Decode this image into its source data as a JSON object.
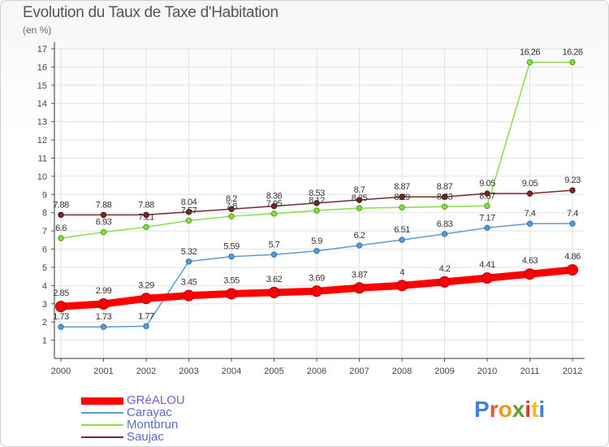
{
  "title": "Evolution du Taux de Taxe d'Habitation",
  "unit_label": "(en %)",
  "brand": {
    "text": "Proxiti",
    "letter_colors": [
      "#3f7fd9",
      "#e8552a",
      "#e89a1a",
      "#5a9f2b",
      "#d63a2a",
      "#e8c21a",
      "#3f7fd9"
    ]
  },
  "chart_data": {
    "type": "line",
    "title": "Evolution du Taux de Taxe d'Habitation",
    "ylabel": "(en %)",
    "xlabel": "",
    "ylim": [
      0,
      17
    ],
    "yticks": [
      1,
      2,
      3,
      4,
      5,
      6,
      7,
      8,
      9,
      10,
      11,
      12,
      13,
      14,
      15,
      16,
      17
    ],
    "x": [
      "2000",
      "2001",
      "2002",
      "2003",
      "2004",
      "2005",
      "2006",
      "2007",
      "2008",
      "2009",
      "2010",
      "2011",
      "2012"
    ],
    "grid": true,
    "legend": "bottom-left",
    "series": [
      {
        "name": "GRéALOU",
        "color": "#ff0000",
        "values": [
          2.85,
          2.99,
          3.29,
          3.45,
          3.55,
          3.62,
          3.69,
          3.87,
          4,
          4.2,
          4.41,
          4.63,
          4.86
        ],
        "labels": [
          "2.85",
          "2.99",
          "3.29",
          "3.45",
          "3.55",
          "3.62",
          "3.69",
          "3.87",
          "4",
          "4.2",
          "4.41",
          "4.63",
          "4.86"
        ]
      },
      {
        "name": "Carayac",
        "color": "#5b9bd5",
        "values": [
          1.73,
          1.73,
          1.77,
          5.32,
          5.59,
          5.7,
          5.9,
          6.2,
          6.51,
          6.83,
          7.17,
          7.4,
          7.4
        ],
        "labels": [
          "1.73",
          "1.73",
          "1.77",
          "5.32",
          "5.59",
          "5.7",
          "5.9",
          "6.2",
          "6.51",
          "6.83",
          "7.17",
          "7.4",
          "7.4"
        ]
      },
      {
        "name": "Montbrun",
        "color": "#88dd44",
        "values": [
          6.6,
          6.93,
          7.21,
          7.57,
          7.8,
          7.95,
          8.12,
          8.25,
          8.29,
          8.33,
          8.37,
          16.26,
          16.26
        ],
        "labels": [
          "6.6",
          "6.93",
          "7.21",
          "7.57",
          "7.8",
          "7.95",
          "8.12",
          "8.25",
          "8.29",
          "8.33",
          "8.37",
          "16.26",
          "16.26"
        ]
      },
      {
        "name": "Saujac",
        "color": "#7a2a2a",
        "values": [
          7.88,
          7.88,
          7.88,
          8.04,
          8.2,
          8.36,
          8.53,
          8.7,
          8.87,
          8.87,
          9.05,
          9.05,
          9.23
        ],
        "labels": [
          "7.88",
          "7.88",
          "7.88",
          "8.04",
          "8.2",
          "8.36",
          "8.53",
          "8.7",
          "8.87",
          "8.87",
          "9.05",
          "9.05",
          "9.23"
        ]
      }
    ]
  }
}
